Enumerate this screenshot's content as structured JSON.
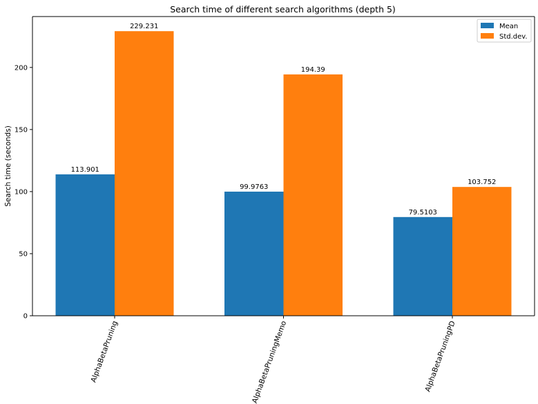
{
  "chart_data": {
    "type": "bar",
    "title": "Search time of different search algorithms (depth 5)",
    "xlabel": "",
    "ylabel": "Search time (seconds)",
    "categories": [
      "AlphaBetaPruning",
      "AlphaBetaPruningMemo",
      "AlphaBetaPruningPD"
    ],
    "series": [
      {
        "name": "Mean",
        "color": "#1f77b4",
        "values": [
          113.901,
          99.9763,
          79.5103
        ],
        "labels": [
          "113.901",
          "99.9763",
          "79.5103"
        ]
      },
      {
        "name": "Std.dev.",
        "color": "#ff7f0e",
        "values": [
          229.231,
          194.39,
          103.752
        ],
        "labels": [
          "229.231",
          "194.39",
          "103.752"
        ]
      }
    ],
    "ylim": [
      0,
      241
    ],
    "yticks": [
      0,
      50,
      100,
      150,
      200
    ],
    "xtick_rotation_deg": 70,
    "grid": false,
    "legend_position": "top-right"
  }
}
